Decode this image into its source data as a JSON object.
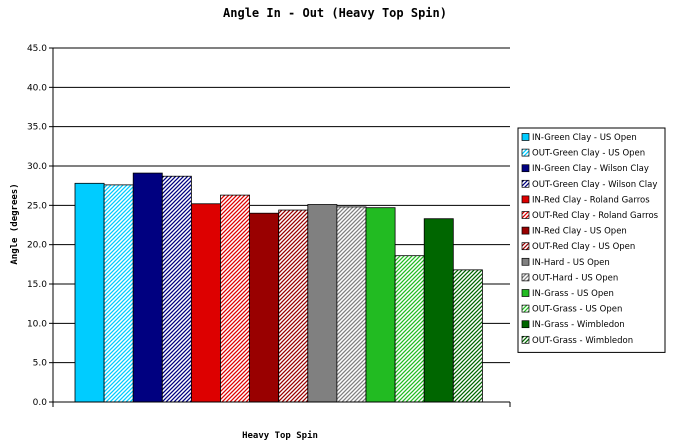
{
  "chart_data": {
    "type": "bar",
    "title": "Angle In - Out (Heavy Top Spin)",
    "xlabel": "Heavy Top Spin",
    "ylabel": "Angle (degrees)",
    "ylim": [
      0,
      45
    ],
    "yticks": [
      "0.0",
      "5.0",
      "10.0",
      "15.0",
      "20.0",
      "25.0",
      "30.0",
      "35.0",
      "40.0",
      "45.0"
    ],
    "grid": true,
    "legend_position": "right",
    "series": [
      {
        "name": "IN-Green Clay - US Open",
        "value": 27.8,
        "color": "#00ccff",
        "pattern": "solid"
      },
      {
        "name": "OUT-Green Clay - US Open",
        "value": 27.6,
        "color": "#00ccff",
        "pattern": "hatch"
      },
      {
        "name": "IN-Green Clay - Wilson Clay",
        "value": 29.1,
        "color": "#000080",
        "pattern": "solid"
      },
      {
        "name": "OUT-Green Clay - Wilson Clay",
        "value": 28.7,
        "color": "#000080",
        "pattern": "hatch"
      },
      {
        "name": "IN-Red Clay - Roland Garros",
        "value": 25.2,
        "color": "#dd0000",
        "pattern": "solid"
      },
      {
        "name": "OUT-Red Clay - Roland Garros",
        "value": 26.3,
        "color": "#dd0000",
        "pattern": "hatch"
      },
      {
        "name": "IN-Red Clay - US Open",
        "value": 24.0,
        "color": "#990000",
        "pattern": "solid"
      },
      {
        "name": "OUT-Red Clay - US Open",
        "value": 24.4,
        "color": "#990000",
        "pattern": "hatch"
      },
      {
        "name": "IN-Hard - US Open",
        "value": 25.1,
        "color": "#808080",
        "pattern": "solid"
      },
      {
        "name": "OUT-Hard - US Open",
        "value": 24.8,
        "color": "#808080",
        "pattern": "hatch"
      },
      {
        "name": "IN-Grass - US Open",
        "value": 24.7,
        "color": "#22bb22",
        "pattern": "solid"
      },
      {
        "name": "OUT-Grass - US Open",
        "value": 18.6,
        "color": "#22bb22",
        "pattern": "hatch"
      },
      {
        "name": "IN-Grass - Wimbledon",
        "value": 23.3,
        "color": "#006600",
        "pattern": "solid"
      },
      {
        "name": "OUT-Grass - Wimbledon",
        "value": 16.8,
        "color": "#006600",
        "pattern": "hatch"
      }
    ]
  }
}
